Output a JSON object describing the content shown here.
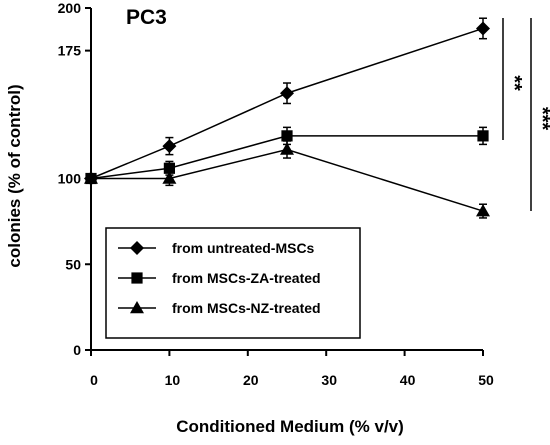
{
  "chart_data": {
    "type": "line",
    "title": "PC3",
    "xlabel": "Conditioned Medium (% v/v)",
    "ylabel": "colonies (% of control)",
    "x": [
      0,
      10,
      25,
      50
    ],
    "xlim": [
      0,
      50
    ],
    "ylim": [
      0,
      200
    ],
    "xticks": [
      0,
      10,
      20,
      30,
      40,
      50
    ],
    "yticks": [
      0,
      50,
      100,
      175,
      200
    ],
    "grid": false,
    "legend_position": "bottom-left",
    "series": [
      {
        "name": "from untreated-MSCs",
        "marker": "diamond",
        "values": [
          100,
          119,
          150,
          188
        ],
        "errors": [
          0,
          5,
          6,
          6
        ]
      },
      {
        "name": "from MSCs-ZA-treated",
        "marker": "square",
        "values": [
          100,
          106,
          125,
          125
        ],
        "errors": [
          0,
          4,
          5,
          5
        ]
      },
      {
        "name": "from MSCs-NZ-treated",
        "marker": "triangle",
        "values": [
          100,
          100,
          117,
          81
        ],
        "errors": [
          0,
          4,
          5,
          4
        ]
      }
    ],
    "annotations": [
      {
        "label": "**",
        "between": [
          "from untreated-MSCs",
          "from MSCs-ZA-treated"
        ]
      },
      {
        "label": "***",
        "between": [
          "from untreated-MSCs",
          "from MSCs-NZ-treated"
        ]
      }
    ]
  }
}
